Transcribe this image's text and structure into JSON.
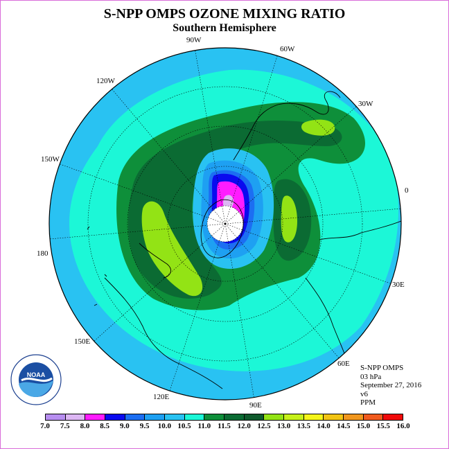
{
  "title": "S-NPP OMPS OZONE MIXING RATIO",
  "subtitle": "Southern Hemisphere",
  "longitude_labels": [
    "90W",
    "60W",
    "30W",
    "0",
    "30E",
    "60E",
    "90E",
    "120E",
    "150E",
    "180",
    "150W",
    "120W"
  ],
  "info": {
    "instrument": "S-NPP OMPS",
    "level": "03 hPa",
    "date": "September 27, 2016",
    "version": "v6",
    "units": "PPM"
  },
  "logo": {
    "text": "NOAA",
    "ring_text": "NATIONAL OCEANIC AND ATMOSPHERIC ADMINISTRATION · U.S. DEPARTMENT OF COMMERCE"
  },
  "colorbar": {
    "ticks": [
      "7.0",
      "7.5",
      "8.0",
      "8.5",
      "9.0",
      "9.5",
      "10.0",
      "10.5",
      "11.0",
      "11.5",
      "12.0",
      "12.5",
      "13.0",
      "13.5",
      "14.0",
      "14.5",
      "15.0",
      "15.5",
      "16.0"
    ],
    "colors": [
      "#b78ef0",
      "#dcb6f3",
      "#ff1cff",
      "#0a0aef",
      "#1c6ef2",
      "#1ea0f2",
      "#29c2f2",
      "#1cf7d7",
      "#0e8f3a",
      "#0b6b33",
      "#0f5a2c",
      "#93e315",
      "#c6f01a",
      "#f5f51a",
      "#f2c414",
      "#f0961e",
      "#f05a1e",
      "#f00a0a",
      "#8b5a3c"
    ]
  }
}
